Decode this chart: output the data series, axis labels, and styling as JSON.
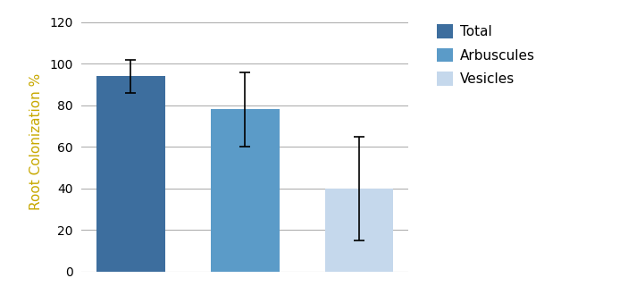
{
  "categories": [
    "Total",
    "Arbuscules",
    "Vesicles"
  ],
  "values": [
    94,
    78,
    40
  ],
  "errors": [
    8,
    18,
    25
  ],
  "bar_colors": [
    "#3D6E9E",
    "#5B9BC8",
    "#C5D8EC"
  ],
  "ylabel": "Root Colonization %",
  "ylabel_color": "#C8A800",
  "ylim": [
    0,
    125
  ],
  "yticks": [
    0,
    20,
    40,
    60,
    80,
    100,
    120
  ],
  "legend_labels": [
    "Total",
    "Arbuscules",
    "Vesicles"
  ],
  "legend_colors": [
    "#3D6E9E",
    "#5B9BC8",
    "#C5D8EC"
  ],
  "background_color": "#ffffff",
  "grid_color": "#b0b0b0",
  "error_color": "black",
  "bar_width": 0.6
}
